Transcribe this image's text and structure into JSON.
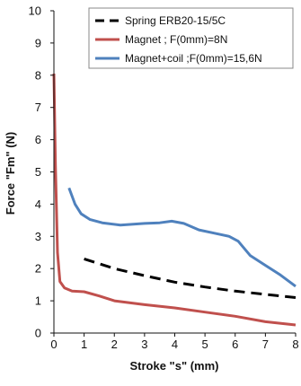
{
  "chart_data": {
    "type": "line",
    "xlabel": "Stroke \"s\" (mm)",
    "ylabel": "Force \"Fm\" (N)",
    "xlim": [
      0,
      8
    ],
    "ylim": [
      0,
      10
    ],
    "xticks": [
      "0",
      "1",
      "2",
      "3",
      "4",
      "5",
      "6",
      "7",
      "8"
    ],
    "yticks": [
      "0",
      "1",
      "2",
      "3",
      "4",
      "5",
      "6",
      "7",
      "8",
      "9",
      "10"
    ],
    "grid": false,
    "legend_position": "top-right",
    "series": [
      {
        "name": "Spring ERB20-15/5C",
        "color": "#000000",
        "style": "dashed",
        "points": [
          [
            1.0,
            2.3
          ],
          [
            2.0,
            2.0
          ],
          [
            3.0,
            1.78
          ],
          [
            4.0,
            1.58
          ],
          [
            5.0,
            1.43
          ],
          [
            6.0,
            1.3
          ],
          [
            7.0,
            1.2
          ],
          [
            8.0,
            1.1
          ]
        ]
      },
      {
        "name": "Magnet ; F(0mm)=8N",
        "color": "#c0504d",
        "style": "solid",
        "points": [
          [
            0.0,
            8.05
          ],
          [
            0.05,
            5.2
          ],
          [
            0.12,
            2.5
          ],
          [
            0.2,
            1.6
          ],
          [
            0.35,
            1.4
          ],
          [
            0.6,
            1.3
          ],
          [
            1.0,
            1.28
          ],
          [
            1.5,
            1.15
          ],
          [
            2.0,
            1.0
          ],
          [
            3.0,
            0.88
          ],
          [
            4.0,
            0.78
          ],
          [
            5.0,
            0.65
          ],
          [
            6.0,
            0.52
          ],
          [
            7.0,
            0.35
          ],
          [
            8.0,
            0.25
          ]
        ]
      },
      {
        "name": "Magnet+coil ;F(0mm)=15,6N",
        "color": "#4f81bd",
        "style": "solid",
        "points": [
          [
            0.5,
            4.5
          ],
          [
            0.7,
            4.0
          ],
          [
            0.9,
            3.7
          ],
          [
            1.2,
            3.52
          ],
          [
            1.6,
            3.42
          ],
          [
            2.2,
            3.35
          ],
          [
            3.0,
            3.4
          ],
          [
            3.5,
            3.42
          ],
          [
            3.9,
            3.47
          ],
          [
            4.3,
            3.4
          ],
          [
            4.8,
            3.2
          ],
          [
            5.3,
            3.1
          ],
          [
            5.8,
            3.0
          ],
          [
            6.1,
            2.85
          ],
          [
            6.5,
            2.4
          ],
          [
            7.0,
            2.1
          ],
          [
            7.5,
            1.8
          ],
          [
            8.0,
            1.45
          ]
        ]
      }
    ]
  }
}
